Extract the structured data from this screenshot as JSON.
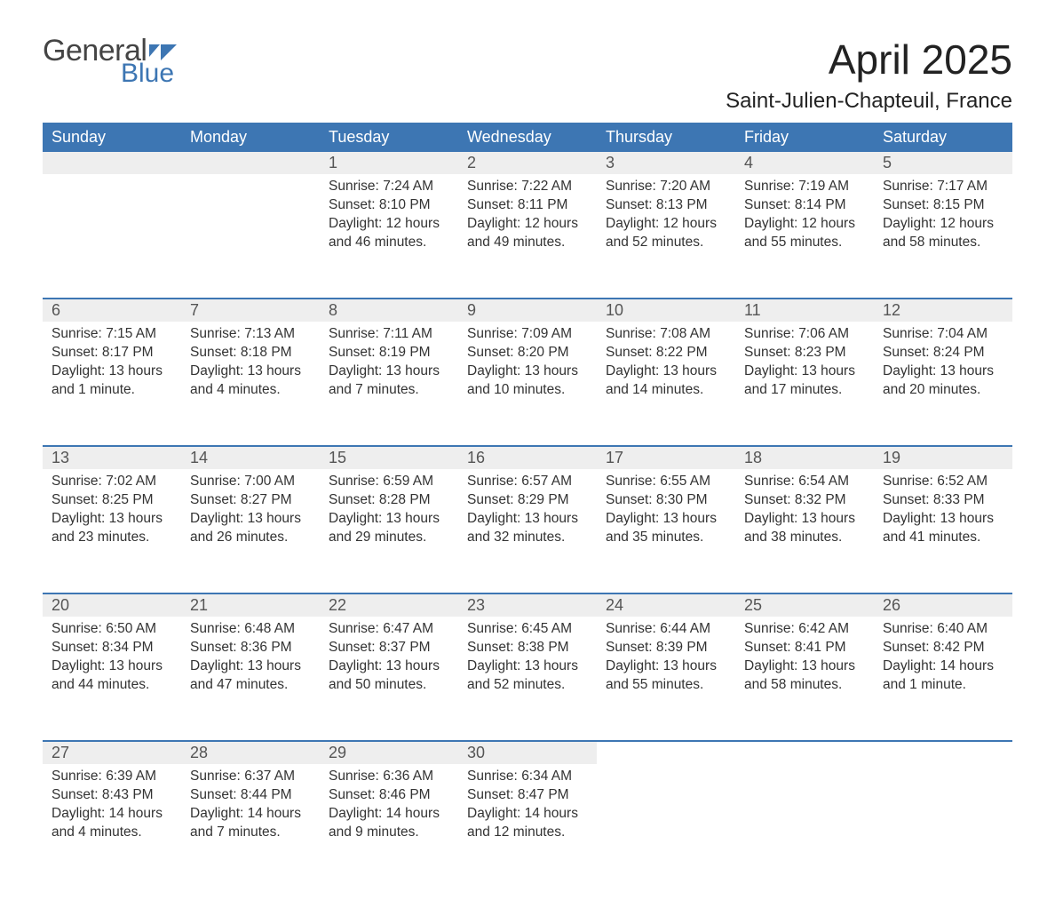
{
  "brand": {
    "part1": "General",
    "part2": "Blue"
  },
  "title": "April 2025",
  "location": "Saint-Julien-Chapteuil, France",
  "colors": {
    "accent": "#3d76b3",
    "header_bg": "#3d76b3",
    "header_text": "#ffffff",
    "daynum_bg": "#eeeeee",
    "text": "#333333",
    "background": "#ffffff"
  },
  "calendar": {
    "type": "table",
    "columns": [
      "Sunday",
      "Monday",
      "Tuesday",
      "Wednesday",
      "Thursday",
      "Friday",
      "Saturday"
    ],
    "weeks": [
      [
        null,
        null,
        {
          "day": "1",
          "sunrise": "7:24 AM",
          "sunset": "8:10 PM",
          "daylight": "12 hours and 46 minutes."
        },
        {
          "day": "2",
          "sunrise": "7:22 AM",
          "sunset": "8:11 PM",
          "daylight": "12 hours and 49 minutes."
        },
        {
          "day": "3",
          "sunrise": "7:20 AM",
          "sunset": "8:13 PM",
          "daylight": "12 hours and 52 minutes."
        },
        {
          "day": "4",
          "sunrise": "7:19 AM",
          "sunset": "8:14 PM",
          "daylight": "12 hours and 55 minutes."
        },
        {
          "day": "5",
          "sunrise": "7:17 AM",
          "sunset": "8:15 PM",
          "daylight": "12 hours and 58 minutes."
        }
      ],
      [
        {
          "day": "6",
          "sunrise": "7:15 AM",
          "sunset": "8:17 PM",
          "daylight": "13 hours and 1 minute."
        },
        {
          "day": "7",
          "sunrise": "7:13 AM",
          "sunset": "8:18 PM",
          "daylight": "13 hours and 4 minutes."
        },
        {
          "day": "8",
          "sunrise": "7:11 AM",
          "sunset": "8:19 PM",
          "daylight": "13 hours and 7 minutes."
        },
        {
          "day": "9",
          "sunrise": "7:09 AM",
          "sunset": "8:20 PM",
          "daylight": "13 hours and 10 minutes."
        },
        {
          "day": "10",
          "sunrise": "7:08 AM",
          "sunset": "8:22 PM",
          "daylight": "13 hours and 14 minutes."
        },
        {
          "day": "11",
          "sunrise": "7:06 AM",
          "sunset": "8:23 PM",
          "daylight": "13 hours and 17 minutes."
        },
        {
          "day": "12",
          "sunrise": "7:04 AM",
          "sunset": "8:24 PM",
          "daylight": "13 hours and 20 minutes."
        }
      ],
      [
        {
          "day": "13",
          "sunrise": "7:02 AM",
          "sunset": "8:25 PM",
          "daylight": "13 hours and 23 minutes."
        },
        {
          "day": "14",
          "sunrise": "7:00 AM",
          "sunset": "8:27 PM",
          "daylight": "13 hours and 26 minutes."
        },
        {
          "day": "15",
          "sunrise": "6:59 AM",
          "sunset": "8:28 PM",
          "daylight": "13 hours and 29 minutes."
        },
        {
          "day": "16",
          "sunrise": "6:57 AM",
          "sunset": "8:29 PM",
          "daylight": "13 hours and 32 minutes."
        },
        {
          "day": "17",
          "sunrise": "6:55 AM",
          "sunset": "8:30 PM",
          "daylight": "13 hours and 35 minutes."
        },
        {
          "day": "18",
          "sunrise": "6:54 AM",
          "sunset": "8:32 PM",
          "daylight": "13 hours and 38 minutes."
        },
        {
          "day": "19",
          "sunrise": "6:52 AM",
          "sunset": "8:33 PM",
          "daylight": "13 hours and 41 minutes."
        }
      ],
      [
        {
          "day": "20",
          "sunrise": "6:50 AM",
          "sunset": "8:34 PM",
          "daylight": "13 hours and 44 minutes."
        },
        {
          "day": "21",
          "sunrise": "6:48 AM",
          "sunset": "8:36 PM",
          "daylight": "13 hours and 47 minutes."
        },
        {
          "day": "22",
          "sunrise": "6:47 AM",
          "sunset": "8:37 PM",
          "daylight": "13 hours and 50 minutes."
        },
        {
          "day": "23",
          "sunrise": "6:45 AM",
          "sunset": "8:38 PM",
          "daylight": "13 hours and 52 minutes."
        },
        {
          "day": "24",
          "sunrise": "6:44 AM",
          "sunset": "8:39 PM",
          "daylight": "13 hours and 55 minutes."
        },
        {
          "day": "25",
          "sunrise": "6:42 AM",
          "sunset": "8:41 PM",
          "daylight": "13 hours and 58 minutes."
        },
        {
          "day": "26",
          "sunrise": "6:40 AM",
          "sunset": "8:42 PM",
          "daylight": "14 hours and 1 minute."
        }
      ],
      [
        {
          "day": "27",
          "sunrise": "6:39 AM",
          "sunset": "8:43 PM",
          "daylight": "14 hours and 4 minutes."
        },
        {
          "day": "28",
          "sunrise": "6:37 AM",
          "sunset": "8:44 PM",
          "daylight": "14 hours and 7 minutes."
        },
        {
          "day": "29",
          "sunrise": "6:36 AM",
          "sunset": "8:46 PM",
          "daylight": "14 hours and 9 minutes."
        },
        {
          "day": "30",
          "sunrise": "6:34 AM",
          "sunset": "8:47 PM",
          "daylight": "14 hours and 12 minutes."
        },
        null,
        null,
        null
      ]
    ],
    "labels": {
      "sunrise": "Sunrise:",
      "sunset": "Sunset:",
      "daylight": "Daylight:"
    }
  }
}
